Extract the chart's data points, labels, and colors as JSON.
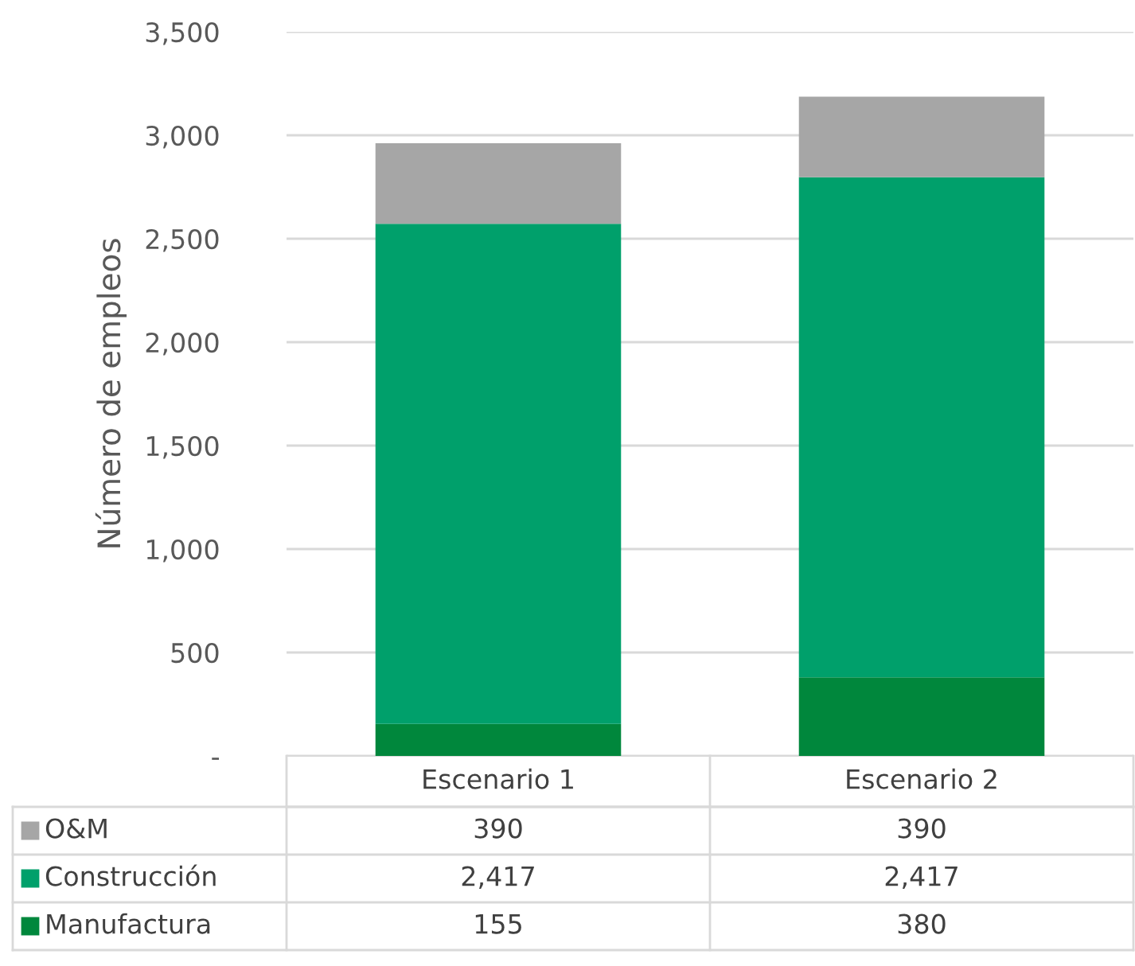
{
  "chart_data": {
    "type": "bar",
    "stacked": true,
    "ylabel": "Número de empleos",
    "categories": [
      "Escenario 1",
      "Escenario 2"
    ],
    "series": [
      {
        "name": "Manufactura",
        "color": "#00873c",
        "values": [
          155,
          380
        ],
        "value_labels": [
          "155",
          "380"
        ]
      },
      {
        "name": "Construcción",
        "color": "#00a06b",
        "values": [
          2417,
          2417
        ],
        "value_labels": [
          "2,417",
          "2,417"
        ]
      },
      {
        "name": "O&M",
        "color": "#a6a6a6",
        "values": [
          390,
          390
        ],
        "value_labels": [
          "390",
          "390"
        ]
      }
    ],
    "ylim": [
      0,
      3500
    ],
    "yticks": [
      {
        "value": 0,
        "label": "-"
      },
      {
        "value": 500,
        "label": "500"
      },
      {
        "value": 1000,
        "label": "1,000"
      },
      {
        "value": 1500,
        "label": "1,500"
      },
      {
        "value": 2000,
        "label": "2,000"
      },
      {
        "value": 2500,
        "label": "2,500"
      },
      {
        "value": 3000,
        "label": "3,000"
      },
      {
        "value": 3500,
        "label": "3,500"
      }
    ],
    "grid": "y",
    "legend": "bottom"
  }
}
